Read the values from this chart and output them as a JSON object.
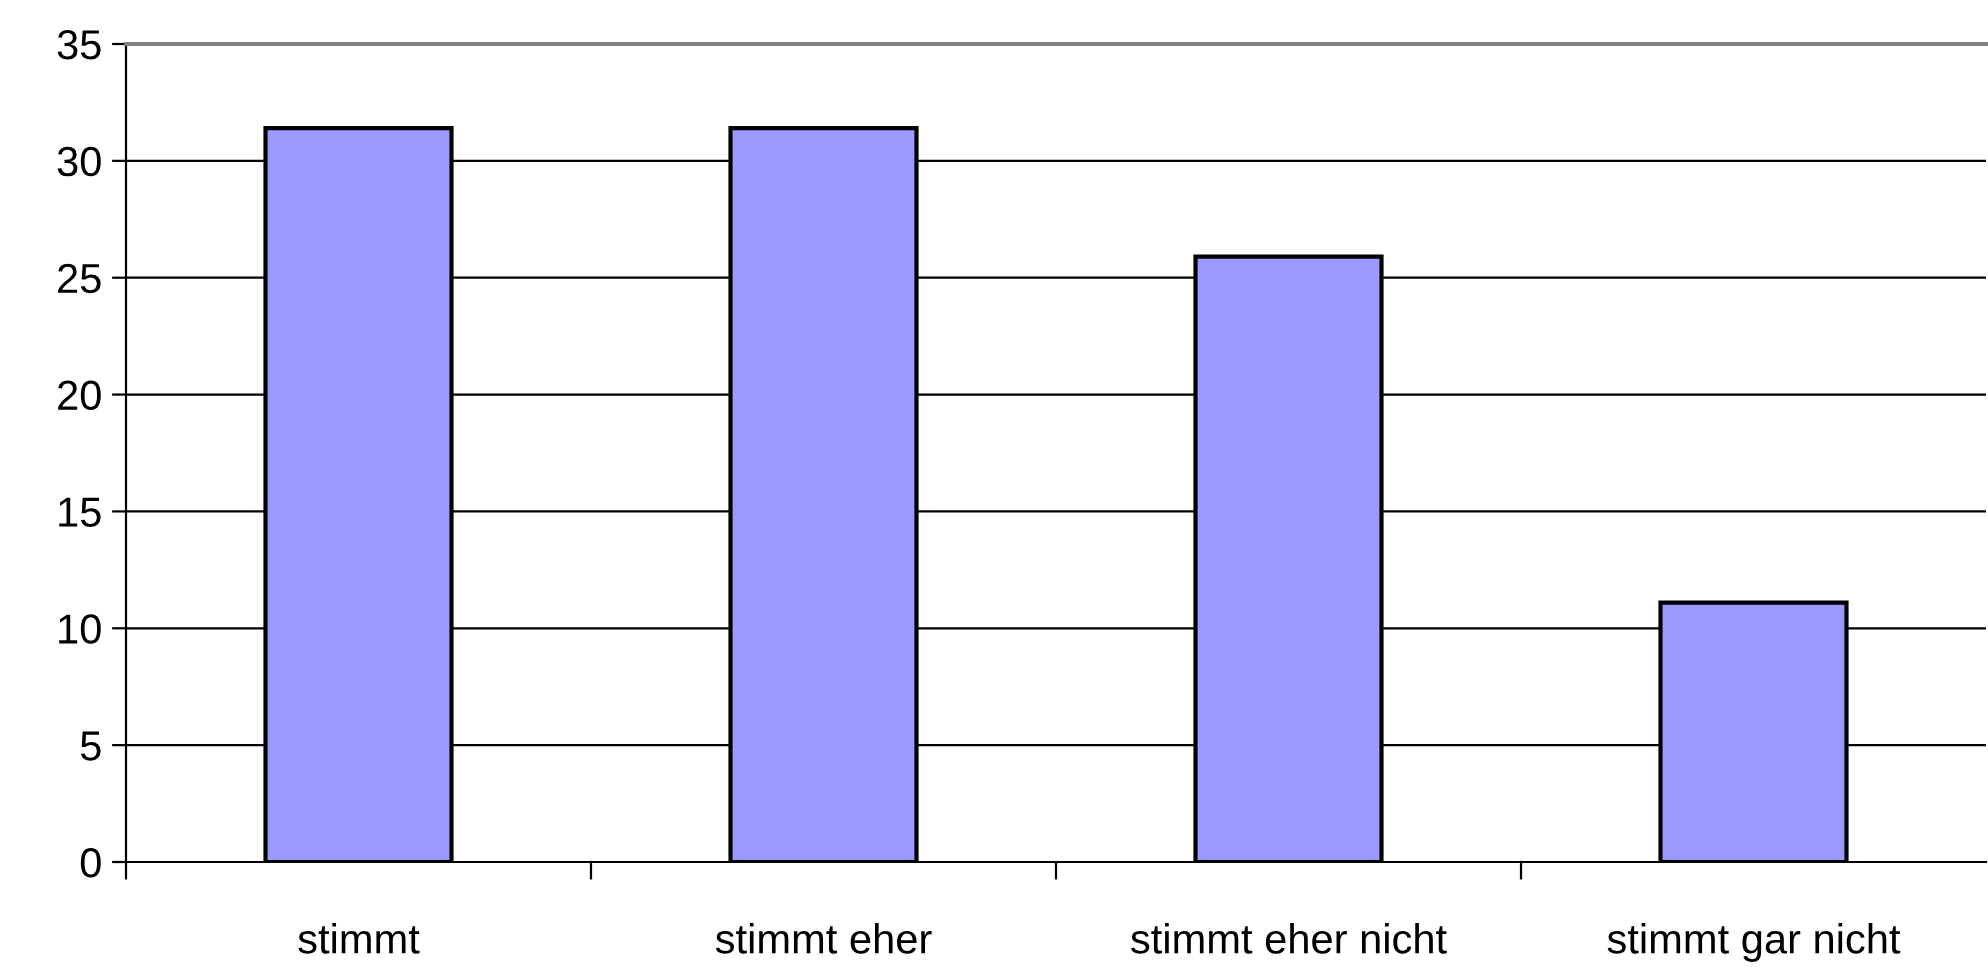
{
  "chart_data": {
    "type": "bar",
    "categories": [
      "stimmt",
      "stimmt eher",
      "stimmt eher nicht",
      "stimmt gar nicht"
    ],
    "values": [
      31.4,
      31.4,
      25.9,
      11.1
    ],
    "color": "#9999ff",
    "ylim": [
      0,
      35
    ],
    "yticks": [
      0,
      5,
      10,
      15,
      20,
      25,
      30,
      35
    ],
    "grid": "y",
    "legend": false
  }
}
